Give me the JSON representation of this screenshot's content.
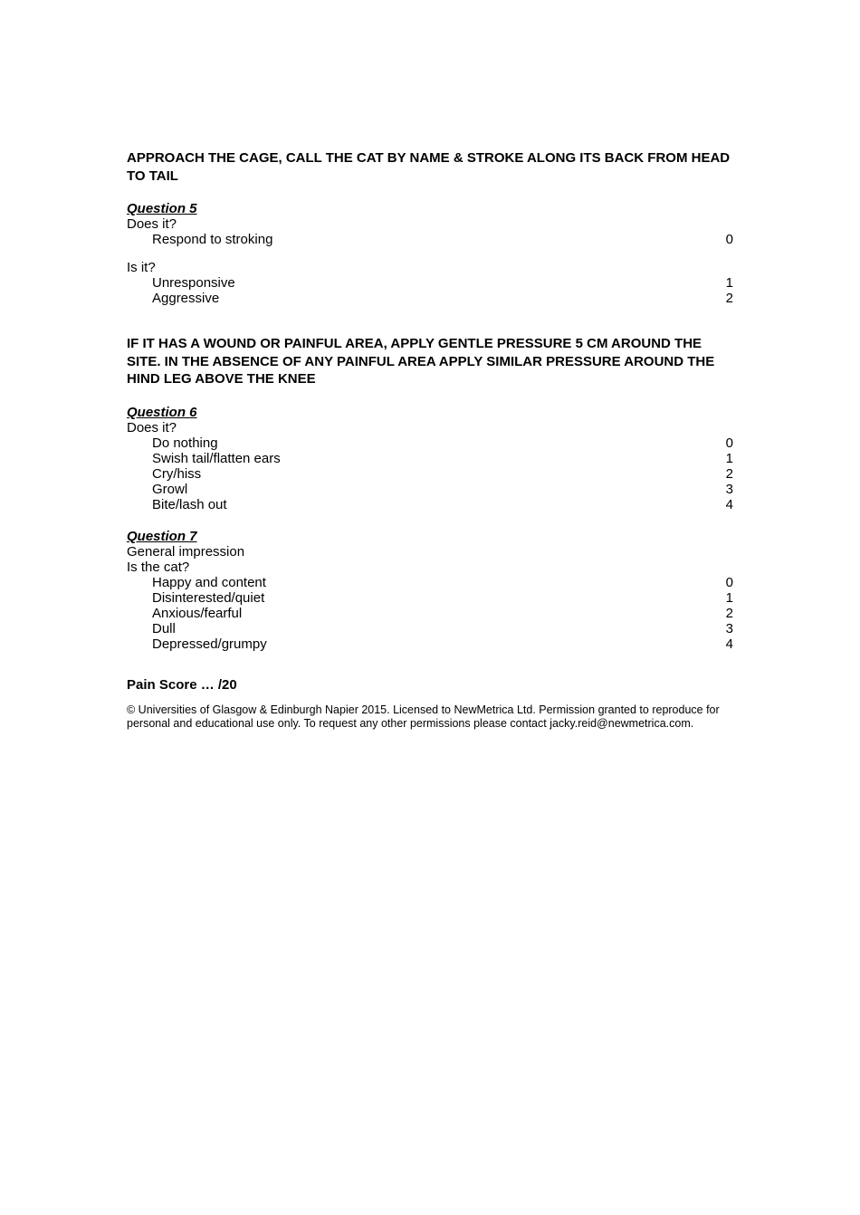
{
  "instruction1": "APPROACH THE CAGE, CALL THE CAT BY NAME & STROKE ALONG ITS BACK FROM HEAD TO TAIL",
  "q5": {
    "title": "Question 5",
    "prompt1": "Does it?",
    "options1": [
      {
        "label": "Respond to stroking",
        "score": "0"
      }
    ],
    "prompt2": "Is it?",
    "options2": [
      {
        "label": "Unresponsive",
        "score": "1"
      },
      {
        "label": "Aggressive",
        "score": "2"
      }
    ]
  },
  "instruction2": "IF IT HAS A WOUND OR PAINFUL AREA, APPLY GENTLE PRESSURE 5 CM AROUND THE SITE. IN THE ABSENCE OF ANY PAINFUL AREA APPLY SIMILAR PRESSURE AROUND THE HIND LEG ABOVE THE KNEE",
  "q6": {
    "title": "Question 6",
    "prompt": "Does it?",
    "options": [
      {
        "label": "Do nothing",
        "score": "0"
      },
      {
        "label": "Swish tail/flatten ears",
        "score": "1"
      },
      {
        "label": "Cry/hiss",
        "score": "2"
      },
      {
        "label": "Growl",
        "score": "3"
      },
      {
        "label": "Bite/lash out",
        "score": "4"
      }
    ]
  },
  "q7": {
    "title": "Question 7",
    "sub1": "General impression",
    "sub2": "Is the cat?",
    "options": [
      {
        "label": "Happy and content",
        "score": "0"
      },
      {
        "label": "Disinterested/quiet",
        "score": "1"
      },
      {
        "label": "Anxious/fearful",
        "score": "2"
      },
      {
        "label": "Dull",
        "score": "3"
      },
      {
        "label": "Depressed/grumpy",
        "score": "4"
      }
    ]
  },
  "painScore": "Pain Score … /20",
  "copyright": "© Universities of Glasgow & Edinburgh Napier 2015.  Licensed to NewMetrica Ltd. Permission granted to reproduce for personal and educational use only. To request any other permissions please contact jacky.reid@newmetrica.com."
}
